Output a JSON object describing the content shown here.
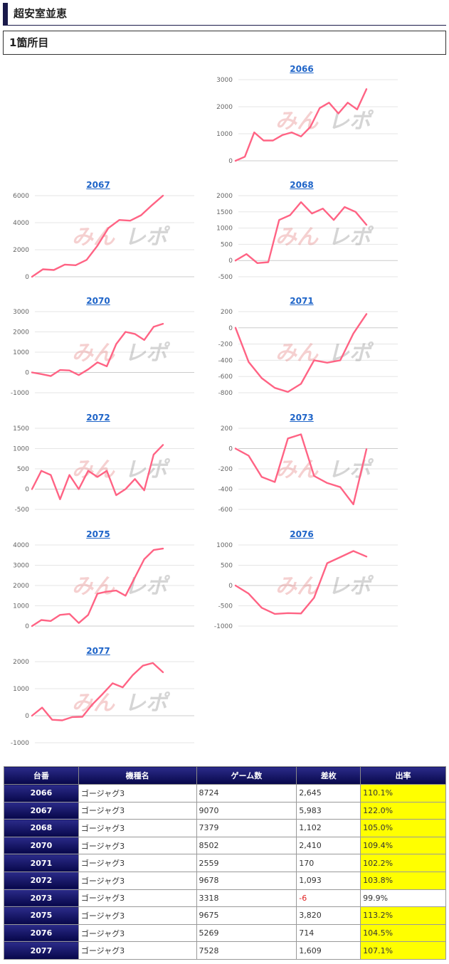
{
  "page": {
    "heading": "超安室並恵",
    "section_title": "1箇所目"
  },
  "colors": {
    "line": "#ff6384",
    "link": "#1e64c8",
    "header_dark": "#07074a",
    "highlight": "#ffff00",
    "negative": "#e02020"
  },
  "watermark": {
    "left": "みん",
    "right": "レポ"
  },
  "charts": [
    {
      "id": "2066",
      "yticks": [
        "3000",
        "2000",
        "1000",
        "0"
      ],
      "ylim": [
        0,
        3000
      ],
      "values": [
        0,
        150,
        1050,
        750,
        750,
        950,
        1050,
        900,
        1250,
        1950,
        2150,
        1750,
        2150,
        1900,
        2650
      ]
    },
    {
      "id": "2067",
      "yticks": [
        "6000",
        "4000",
        "2000",
        "0"
      ],
      "ylim": [
        0,
        6000
      ],
      "values": [
        0,
        550,
        500,
        900,
        850,
        1250,
        2300,
        3600,
        4200,
        4150,
        4550,
        5300,
        6000
      ]
    },
    {
      "id": "2068",
      "yticks": [
        "2000",
        "1500",
        "1000",
        "500",
        "0",
        "-500"
      ],
      "ylim": [
        -500,
        2000
      ],
      "values": [
        0,
        200,
        -80,
        -50,
        1250,
        1400,
        1800,
        1450,
        1600,
        1250,
        1650,
        1500,
        1100
      ]
    },
    {
      "id": "2070",
      "yticks": [
        "3000",
        "2000",
        "1000",
        "0",
        "-1000"
      ],
      "ylim": [
        -1000,
        3000
      ],
      "values": [
        0,
        -80,
        -180,
        120,
        100,
        -130,
        150,
        500,
        300,
        1400,
        2000,
        1900,
        1600,
        2250,
        2400
      ]
    },
    {
      "id": "2071",
      "yticks": [
        "200",
        "0",
        "-200",
        "-400",
        "-600",
        "-800"
      ],
      "ylim": [
        -800,
        200
      ],
      "values": [
        0,
        -420,
        -620,
        -740,
        -790,
        -690,
        -400,
        -430,
        -400,
        -70,
        170
      ]
    },
    {
      "id": "2072",
      "yticks": [
        "1500",
        "1000",
        "500",
        "0",
        "-500"
      ],
      "ylim": [
        -500,
        1500
      ],
      "values": [
        0,
        450,
        350,
        -250,
        350,
        0,
        450,
        300,
        450,
        -150,
        0,
        250,
        -30,
        850,
        1090
      ]
    },
    {
      "id": "2073",
      "yticks": [
        "200",
        "0",
        "-200",
        "-400",
        "-600"
      ],
      "ylim": [
        -600,
        200
      ],
      "values": [
        0,
        -70,
        -280,
        -330,
        100,
        140,
        -270,
        -340,
        -380,
        -550,
        -6
      ]
    },
    {
      "id": "2075",
      "yticks": [
        "4000",
        "3000",
        "2000",
        "1000",
        "0"
      ],
      "ylim": [
        0,
        4000
      ],
      "values": [
        0,
        300,
        250,
        550,
        600,
        150,
        550,
        1600,
        1700,
        1750,
        1500,
        2400,
        3300,
        3750,
        3820
      ]
    },
    {
      "id": "2076",
      "yticks": [
        "1000",
        "500",
        "0",
        "-500",
        "-1000"
      ],
      "ylim": [
        -1000,
        1000
      ],
      "values": [
        0,
        -200,
        -550,
        -700,
        -680,
        -690,
        -300,
        550,
        700,
        850,
        714
      ]
    },
    {
      "id": "2077",
      "yticks": [
        "2000",
        "1000",
        "0",
        "-1000"
      ],
      "ylim": [
        -1000,
        2000
      ],
      "values": [
        0,
        300,
        -150,
        -170,
        -50,
        -40,
        420,
        800,
        1200,
        1050,
        1500,
        1850,
        1950,
        1609
      ]
    }
  ],
  "table": {
    "headers": [
      "台番",
      "機種名",
      "ゲーム数",
      "差枚",
      "出率"
    ],
    "rows": [
      {
        "id": "2066",
        "name": "ゴージャグ3",
        "games": "8724",
        "diff": "2,645",
        "rate": "110.1%",
        "high": true
      },
      {
        "id": "2067",
        "name": "ゴージャグ3",
        "games": "9070",
        "diff": "5,983",
        "rate": "122.0%",
        "high": true
      },
      {
        "id": "2068",
        "name": "ゴージャグ3",
        "games": "7379",
        "diff": "1,102",
        "rate": "105.0%",
        "high": true
      },
      {
        "id": "2070",
        "name": "ゴージャグ3",
        "games": "8502",
        "diff": "2,410",
        "rate": "109.4%",
        "high": true
      },
      {
        "id": "2071",
        "name": "ゴージャグ3",
        "games": "2559",
        "diff": "170",
        "rate": "102.2%",
        "high": true
      },
      {
        "id": "2072",
        "name": "ゴージャグ3",
        "games": "9678",
        "diff": "1,093",
        "rate": "103.8%",
        "high": true
      },
      {
        "id": "2073",
        "name": "ゴージャグ3",
        "games": "3318",
        "diff": "-6",
        "rate": "99.9%",
        "high": false,
        "neg": true
      },
      {
        "id": "2075",
        "name": "ゴージャグ3",
        "games": "9675",
        "diff": "3,820",
        "rate": "113.2%",
        "high": true
      },
      {
        "id": "2076",
        "name": "ゴージャグ3",
        "games": "5269",
        "diff": "714",
        "rate": "104.5%",
        "high": true
      },
      {
        "id": "2077",
        "name": "ゴージャグ3",
        "games": "7528",
        "diff": "1,609",
        "rate": "107.1%",
        "high": true
      }
    ]
  }
}
